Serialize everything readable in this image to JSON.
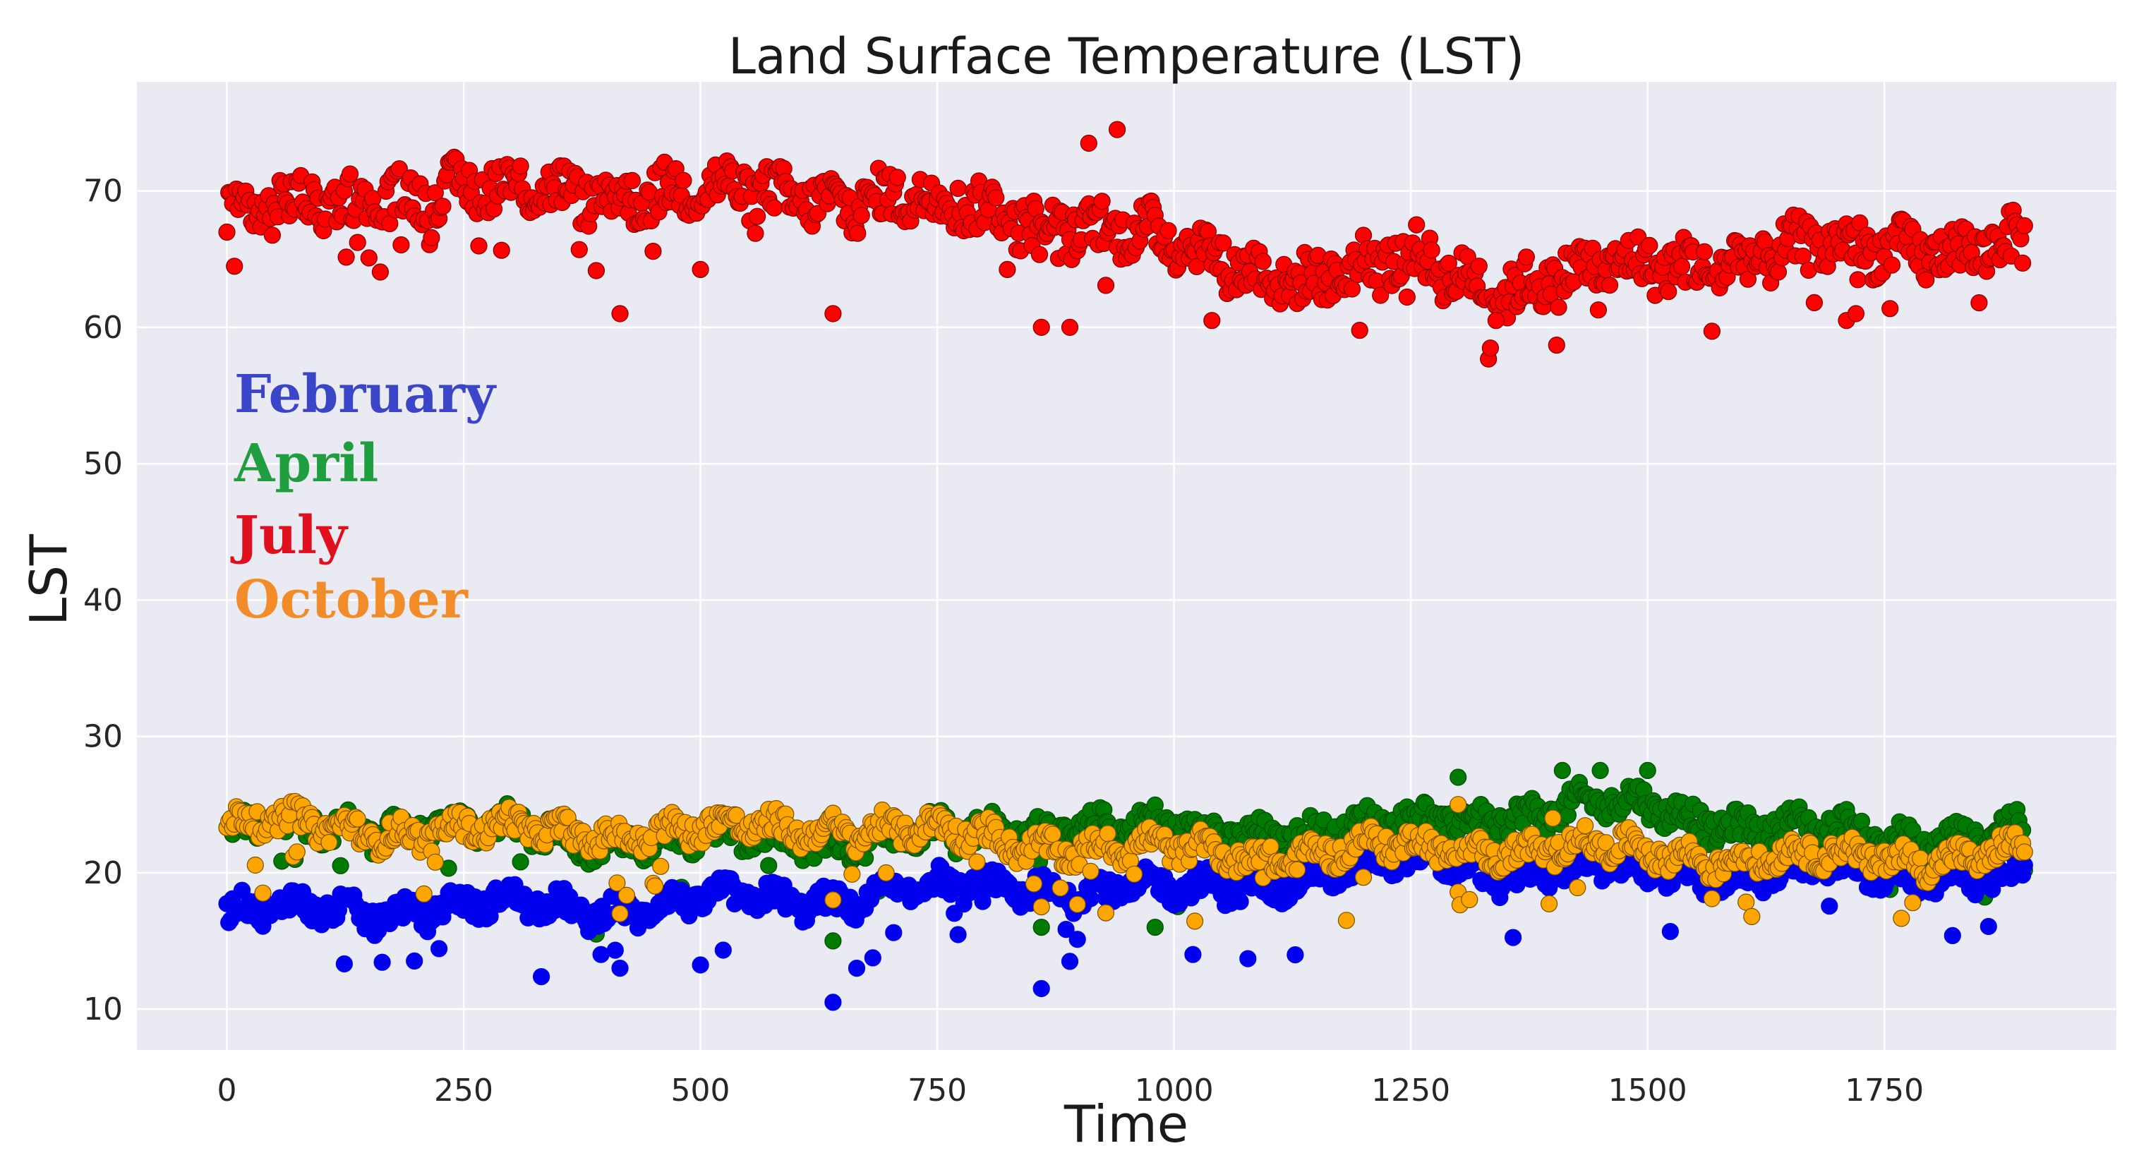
{
  "chart_data": {
    "type": "scatter",
    "title": "Land Surface Temperature (LST)",
    "xlabel": "Time",
    "ylabel": "LST",
    "xlim": [
      -95,
      1995
    ],
    "ylim": [
      7,
      78
    ],
    "grid": true,
    "legend_position": "left-middle",
    "x_ticks": [
      0,
      250,
      500,
      750,
      1000,
      1250,
      1500,
      1750
    ],
    "y_ticks": [
      10,
      20,
      30,
      40,
      50,
      60,
      70
    ],
    "n_points_per_series": 1900,
    "series": [
      {
        "name": "February",
        "color": "#0000ee",
        "label_color": "#3b45c8",
        "stroke": "#0000ee",
        "profile_x": [
          0,
          250,
          400,
          640,
          850,
          1000,
          1100,
          1200,
          1280,
          1350,
          1500,
          1650,
          1800,
          1890
        ],
        "profile_y": [
          17,
          17.5,
          17.5,
          18.2,
          19,
          18.5,
          19.5,
          20.2,
          21,
          20,
          20,
          20,
          20,
          19.5
        ],
        "outliers": [
          [
            395,
            14
          ],
          [
            415,
            13
          ],
          [
            640,
            10.5
          ],
          [
            665,
            13
          ],
          [
            860,
            11.5
          ],
          [
            890,
            13.5
          ],
          [
            1020,
            14
          ]
        ]
      },
      {
        "name": "April",
        "color": "#007a00",
        "label_color": "#1e9e3e",
        "stroke": "#004d00",
        "profile_x": [
          0,
          200,
          400,
          640,
          800,
          900,
          1000,
          1100,
          1200,
          1280,
          1400,
          1500,
          1600,
          1750,
          1890
        ],
        "profile_y": [
          23,
          23.5,
          22.5,
          22.5,
          23,
          23.5,
          23,
          23,
          23,
          24,
          24.5,
          25,
          23.5,
          22.5,
          23
        ],
        "outliers": [
          [
            390,
            15.5
          ],
          [
            640,
            15
          ],
          [
            860,
            16
          ],
          [
            980,
            16
          ],
          [
            1300,
            27
          ],
          [
            1410,
            27.5
          ],
          [
            1450,
            27.5
          ],
          [
            1500,
            27.5
          ]
        ]
      },
      {
        "name": "July",
        "color": "#ff0000",
        "label_color": "#e0101e",
        "stroke": "#7a0000",
        "profile_x": [
          0,
          200,
          400,
          700,
          850,
          950,
          1050,
          1150,
          1250,
          1350,
          1500,
          1650,
          1800,
          1890
        ],
        "profile_y": [
          68,
          70,
          70,
          69.5,
          68,
          67,
          65,
          63.5,
          65,
          63,
          64.5,
          65.5,
          66,
          66
        ],
        "outliers": [
          [
            415,
            61
          ],
          [
            640,
            61
          ],
          [
            860,
            60
          ],
          [
            890,
            60
          ],
          [
            910,
            73.5
          ],
          [
            940,
            74.5
          ],
          [
            1040,
            60.5
          ],
          [
            1340,
            60.5
          ],
          [
            1710,
            60.5
          ],
          [
            1720,
            61
          ]
        ]
      },
      {
        "name": "October",
        "color": "#ffa500",
        "label_color": "#f28c28",
        "stroke": "#7a5000",
        "profile_x": [
          0,
          250,
          500,
          640,
          800,
          1000,
          1150,
          1300,
          1500,
          1700,
          1890
        ],
        "profile_y": [
          23.5,
          23,
          23,
          23.5,
          22.5,
          21.5,
          21.5,
          22,
          21.5,
          21,
          21.5
        ],
        "outliers": [
          [
            415,
            17
          ],
          [
            640,
            18
          ],
          [
            860,
            17.5
          ],
          [
            1300,
            25
          ],
          [
            1400,
            24
          ]
        ]
      }
    ]
  }
}
